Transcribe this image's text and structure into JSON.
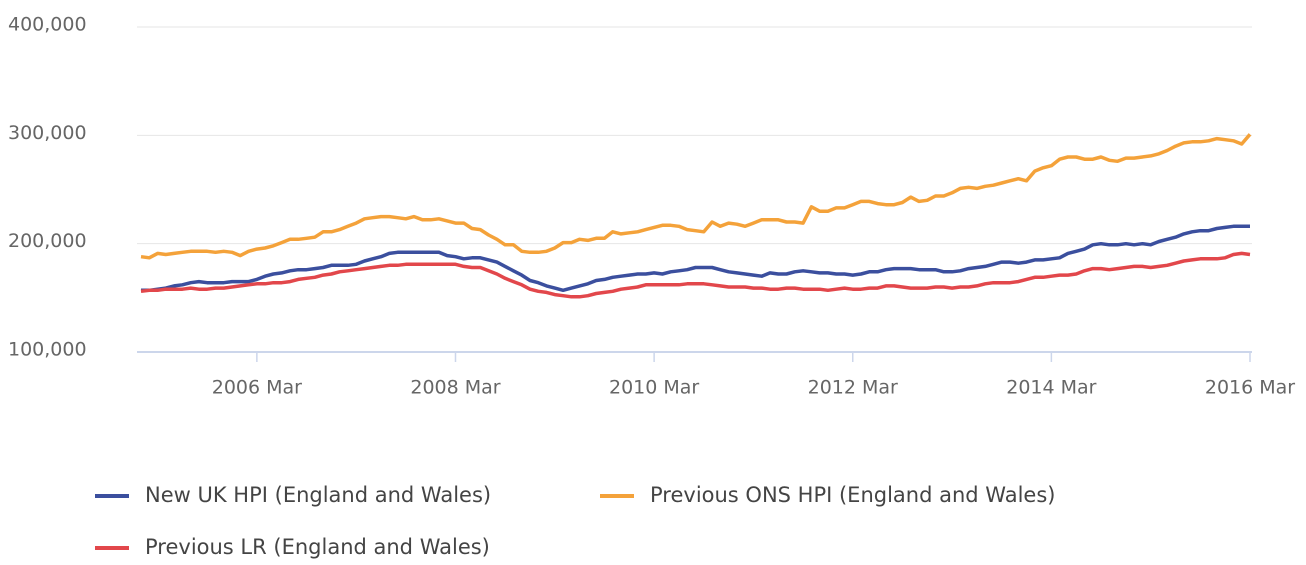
{
  "chart_data": {
    "type": "line",
    "categories": [
      null,
      null,
      null,
      null,
      null,
      null,
      null,
      null,
      null,
      null,
      null,
      null,
      null,
      null,
      "2006 Mar",
      null,
      null,
      null,
      null,
      null,
      null,
      null,
      null,
      null,
      null,
      null,
      null,
      null,
      null,
      null,
      null,
      null,
      null,
      null,
      null,
      null,
      null,
      null,
      "2008 Mar",
      null,
      null,
      null,
      null,
      null,
      null,
      null,
      null,
      null,
      null,
      null,
      null,
      null,
      null,
      null,
      null,
      null,
      null,
      null,
      null,
      null,
      null,
      null,
      "2010 Mar",
      null,
      null,
      null,
      null,
      null,
      null,
      null,
      null,
      null,
      null,
      null,
      null,
      null,
      null,
      null,
      null,
      null,
      null,
      null,
      null,
      null,
      null,
      null,
      "2012 Mar",
      null,
      null,
      null,
      null,
      null,
      null,
      null,
      null,
      null,
      null,
      null,
      null,
      null,
      null,
      null,
      null,
      null,
      null,
      null,
      null,
      null,
      null,
      null,
      "2014 Mar",
      null,
      null,
      null,
      null,
      null,
      null,
      null,
      null,
      null,
      null,
      null,
      null,
      null,
      null,
      null,
      null,
      null,
      null,
      null,
      null,
      null,
      null,
      null,
      "2016 Mar"
    ],
    "series": [
      {
        "name": "New UK HPI (England and Wales)",
        "color": "#3b4f9e",
        "values": [
          157000,
          157000,
          158000,
          159000,
          161000,
          162000,
          164000,
          165000,
          164000,
          164000,
          164000,
          165000,
          165000,
          165000,
          167000,
          170000,
          172000,
          173000,
          175000,
          176000,
          176000,
          177000,
          178000,
          180000,
          180000,
          180000,
          181000,
          184000,
          186000,
          188000,
          191000,
          192000,
          192000,
          192000,
          192000,
          192000,
          192000,
          189000,
          188000,
          186000,
          187000,
          187000,
          185000,
          183000,
          179000,
          175000,
          171000,
          166000,
          164000,
          161000,
          159000,
          157000,
          159000,
          161000,
          163000,
          166000,
          167000,
          169000,
          170000,
          171000,
          172000,
          172000,
          173000,
          172000,
          174000,
          175000,
          176000,
          178000,
          178000,
          178000,
          176000,
          174000,
          173000,
          172000,
          171000,
          170000,
          173000,
          172000,
          172000,
          174000,
          175000,
          174000,
          173000,
          173000,
          172000,
          172000,
          171000,
          172000,
          174000,
          174000,
          176000,
          177000,
          177000,
          177000,
          176000,
          176000,
          176000,
          174000,
          174000,
          175000,
          177000,
          178000,
          179000,
          181000,
          183000,
          183000,
          182000,
          183000,
          185000,
          185000,
          186000,
          187000,
          191000,
          193000,
          195000,
          199000,
          200000,
          199000,
          199000,
          200000,
          199000,
          200000,
          199000,
          202000,
          204000,
          206000,
          209000,
          211000,
          212000,
          212000,
          214000,
          215000,
          216000,
          216000,
          216000
        ]
      },
      {
        "name": "Previous ONS HPI (England and Wales)",
        "color": "#f4a23a",
        "values": [
          188000,
          187000,
          191000,
          190000,
          191000,
          192000,
          193000,
          193000,
          193000,
          192000,
          193000,
          192000,
          189000,
          193000,
          195000,
          196000,
          198000,
          201000,
          204000,
          204000,
          205000,
          206000,
          211000,
          211000,
          213000,
          216000,
          219000,
          223000,
          224000,
          225000,
          225000,
          224000,
          223000,
          225000,
          222000,
          222000,
          223000,
          221000,
          219000,
          219000,
          214000,
          213000,
          208000,
          204000,
          199000,
          199000,
          193000,
          192000,
          192000,
          193000,
          196000,
          201000,
          201000,
          204000,
          203000,
          205000,
          205000,
          211000,
          209000,
          210000,
          211000,
          213000,
          215000,
          217000,
          217000,
          216000,
          213000,
          212000,
          211000,
          220000,
          216000,
          219000,
          218000,
          216000,
          219000,
          222000,
          222000,
          222000,
          220000,
          220000,
          219000,
          234000,
          230000,
          230000,
          233000,
          233000,
          236000,
          239000,
          239000,
          237000,
          236000,
          236000,
          238000,
          243000,
          239000,
          240000,
          244000,
          244000,
          247000,
          251000,
          252000,
          251000,
          253000,
          254000,
          256000,
          258000,
          260000,
          258000,
          267000,
          270000,
          272000,
          278000,
          280000,
          280000,
          278000,
          278000,
          280000,
          277000,
          276000,
          279000,
          279000,
          280000,
          281000,
          283000,
          286000,
          290000,
          293000,
          294000,
          294000,
          295000,
          297000,
          296000,
          295000,
          292000,
          301000
        ]
      },
      {
        "name": "Previous LR (England and Wales)",
        "color": "#e2474b",
        "values": [
          156000,
          157000,
          157000,
          158000,
          158000,
          158000,
          159000,
          158000,
          158000,
          159000,
          159000,
          160000,
          161000,
          162000,
          163000,
          163000,
          164000,
          164000,
          165000,
          167000,
          168000,
          169000,
          171000,
          172000,
          174000,
          175000,
          176000,
          177000,
          178000,
          179000,
          180000,
          180000,
          181000,
          181000,
          181000,
          181000,
          181000,
          181000,
          181000,
          179000,
          178000,
          178000,
          175000,
          172000,
          168000,
          165000,
          162000,
          158000,
          156000,
          155000,
          153000,
          152000,
          151000,
          151000,
          152000,
          154000,
          155000,
          156000,
          158000,
          159000,
          160000,
          162000,
          162000,
          162000,
          162000,
          162000,
          163000,
          163000,
          163000,
          162000,
          161000,
          160000,
          160000,
          160000,
          159000,
          159000,
          158000,
          158000,
          159000,
          159000,
          158000,
          158000,
          158000,
          157000,
          158000,
          159000,
          158000,
          158000,
          159000,
          159000,
          161000,
          161000,
          160000,
          159000,
          159000,
          159000,
          160000,
          160000,
          159000,
          160000,
          160000,
          161000,
          163000,
          164000,
          164000,
          164000,
          165000,
          167000,
          169000,
          169000,
          170000,
          171000,
          171000,
          172000,
          175000,
          177000,
          177000,
          176000,
          177000,
          178000,
          179000,
          179000,
          178000,
          179000,
          180000,
          182000,
          184000,
          185000,
          186000,
          186000,
          186000,
          187000,
          190000,
          191000,
          190000
        ]
      }
    ],
    "ylim": [
      100000,
      400000
    ],
    "yticks": [
      {
        "value": 100000,
        "label": "100,000"
      },
      {
        "value": 200000,
        "label": "200,000"
      },
      {
        "value": 300000,
        "label": "300,000"
      },
      {
        "value": 400000,
        "label": "400,000"
      }
    ],
    "grid": true
  }
}
